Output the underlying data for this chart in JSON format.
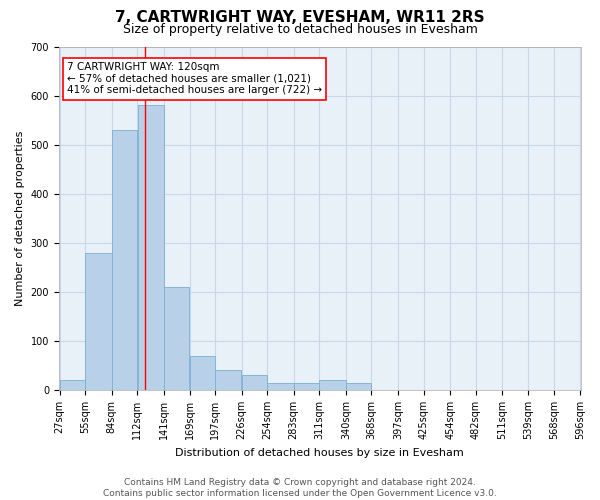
{
  "title": "7, CARTWRIGHT WAY, EVESHAM, WR11 2RS",
  "subtitle": "Size of property relative to detached houses in Evesham",
  "xlabel": "Distribution of detached houses by size in Evesham",
  "ylabel": "Number of detached properties",
  "footer_line1": "Contains HM Land Registry data © Crown copyright and database right 2024.",
  "footer_line2": "Contains public sector information licensed under the Open Government Licence v3.0.",
  "bin_edges": [
    27,
    55,
    84,
    112,
    141,
    169,
    197,
    226,
    254,
    283,
    311,
    340,
    368,
    397,
    425,
    454,
    482,
    511,
    539,
    568,
    596
  ],
  "counts": [
    20,
    280,
    530,
    580,
    210,
    70,
    40,
    30,
    15,
    15,
    20,
    15,
    0,
    0,
    0,
    0,
    0,
    0,
    0,
    0
  ],
  "bar_color": "#b8d0e8",
  "bar_edge_color": "#7aafd4",
  "bar_linewidth": 0.6,
  "grid_color": "#c8d8ea",
  "background_color": "#e8f0f8",
  "red_line_x": 120,
  "annotation_text": "7 CARTWRIGHT WAY: 120sqm\n← 57% of detached houses are smaller (1,021)\n41% of semi-detached houses are larger (722) →",
  "annotation_box_color": "white",
  "annotation_border_color": "red",
  "ylim": [
    0,
    700
  ],
  "yticks": [
    0,
    100,
    200,
    300,
    400,
    500,
    600,
    700
  ],
  "title_fontsize": 11,
  "subtitle_fontsize": 9,
  "axis_label_fontsize": 8,
  "tick_fontsize": 7,
  "annotation_fontsize": 7.5,
  "footer_fontsize": 6.5,
  "ylabel_fontsize": 8
}
